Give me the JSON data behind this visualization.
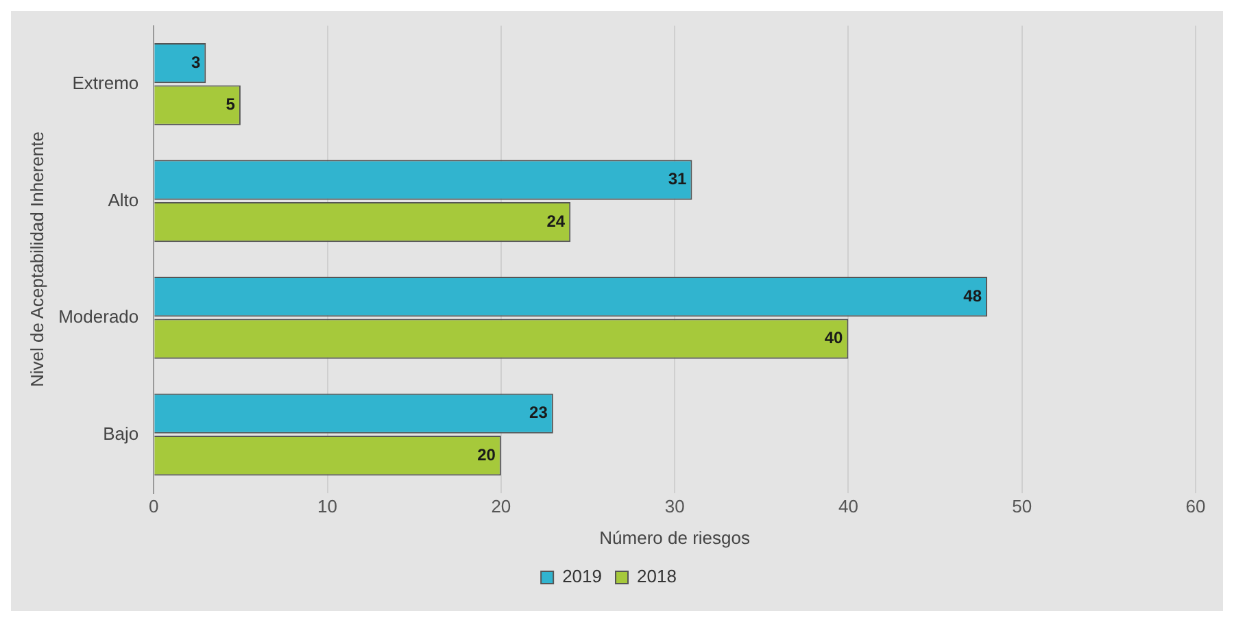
{
  "chart_data": {
    "type": "bar",
    "orientation": "horizontal",
    "xlabel": "Número de riesgos",
    "ylabel": "Nivel de Aceptabilidad Inherente",
    "categories": [
      "Extremo",
      "Alto",
      "Moderado",
      "Bajo"
    ],
    "series": [
      {
        "name": "2019",
        "color": "#31b4cf",
        "values": [
          3,
          31,
          48,
          23
        ]
      },
      {
        "name": "2018",
        "color": "#a6c93b",
        "values": [
          5,
          24,
          40,
          20
        ]
      }
    ],
    "xlim": [
      0,
      60
    ],
    "xticks": [
      0,
      10,
      20,
      30,
      40,
      50,
      60
    ],
    "grid": "x",
    "legend": "bottom",
    "data_labels": true
  }
}
